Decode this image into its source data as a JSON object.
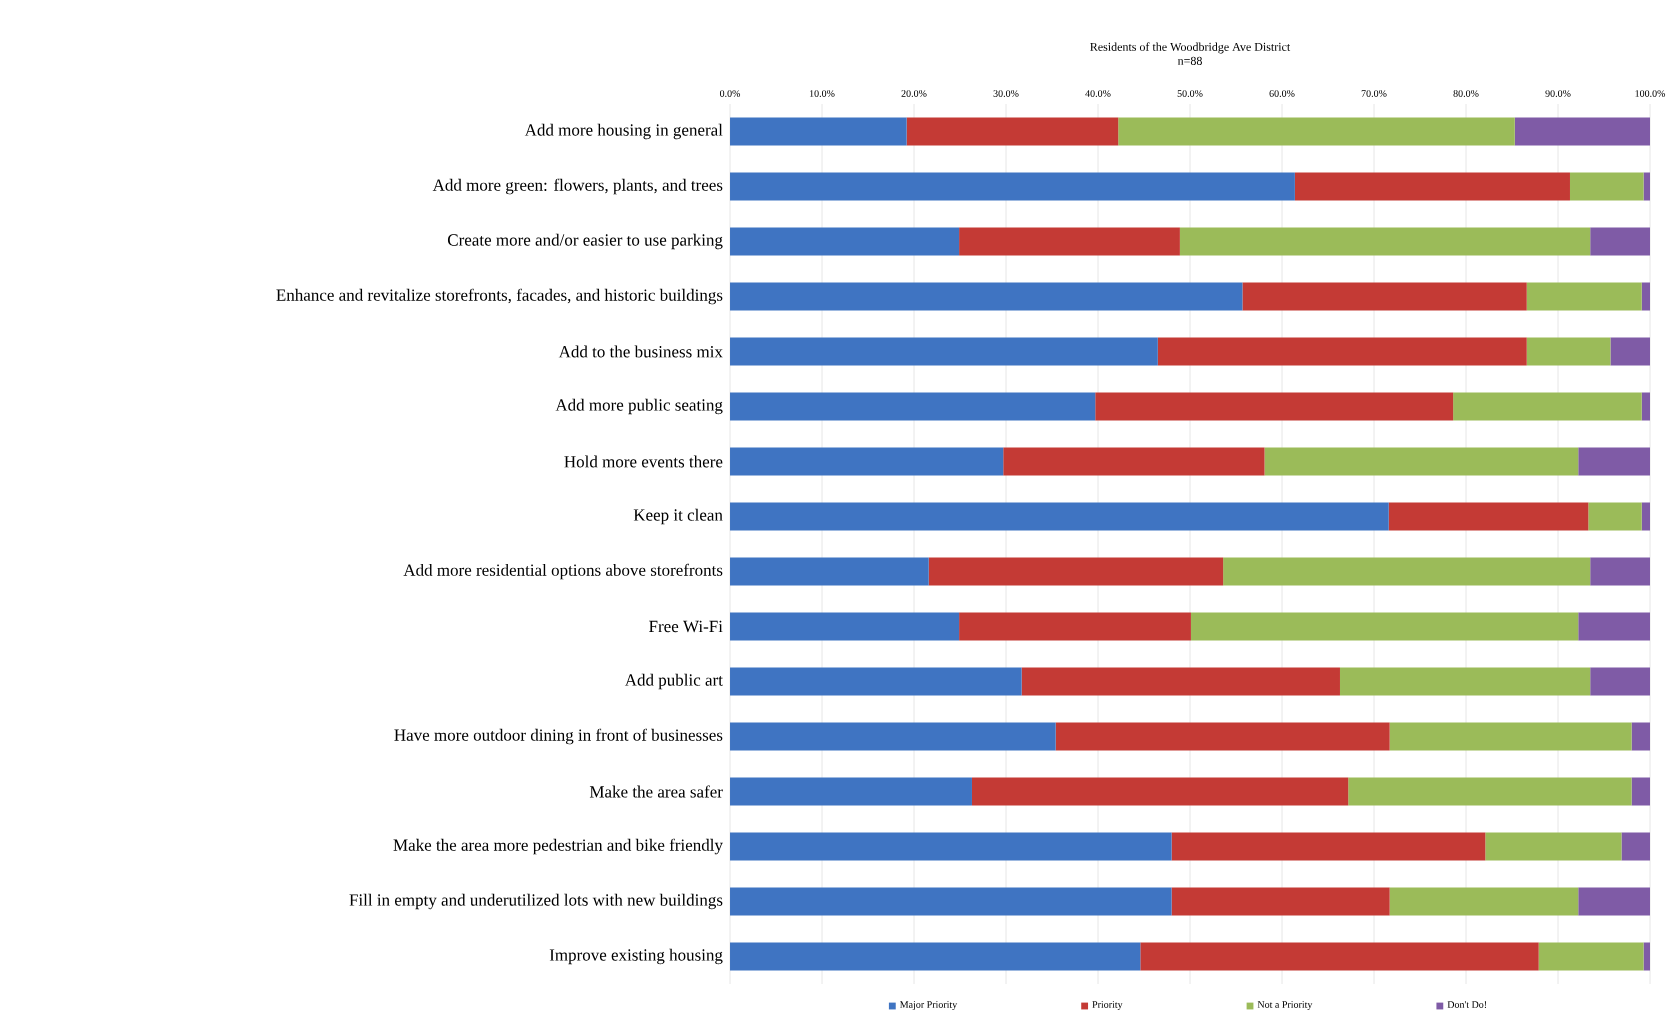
{
  "chart_data": {
    "type": "bar",
    "title": "Residents of the Woodbridge Ave District",
    "subtitle": "n=88",
    "orientation": "horizontal",
    "stacked": true,
    "grid": "x",
    "legend": "bottom",
    "categories": [
      "Add more housing in general",
      "Add more green: flowers, plants, and trees",
      "Create more and/or easier to use parking",
      "Enhance and revitalize storefronts, facades, and historic buildings",
      "Add to the business mix",
      "Add more public seating",
      "Hold more events there",
      "Keep it clean",
      "Add more residential options above storefronts",
      "Free Wi-Fi",
      "Add public art",
      "Have more outdoor dining in front of businesses",
      "Make the area safer",
      "Make the area more pedestrian and bike friendly",
      "Fill in empty and underutilized lots with new buildings",
      "Improve existing housing"
    ],
    "xlim": [
      0,
      100
    ],
    "xticks": [
      {
        "value": 0,
        "label": "0.0%"
      },
      {
        "value": 10,
        "label": "10.0%"
      },
      {
        "value": 20,
        "label": "20.0%"
      },
      {
        "value": 30,
        "label": "30.0%"
      },
      {
        "value": 40,
        "label": "40.0%"
      },
      {
        "value": 50,
        "label": "50.0%"
      },
      {
        "value": 60,
        "label": "60.0%"
      },
      {
        "value": 70,
        "label": "70.0%"
      },
      {
        "value": 80,
        "label": "80.0%"
      },
      {
        "value": 90,
        "label": "90.0%"
      },
      {
        "value": 100,
        "label": "100.0%"
      }
    ],
    "series": [
      {
        "name": "Major Priority",
        "color": "#3f74c2",
        "values": [
          19.2,
          61.4,
          24.9,
          55.7,
          46.5,
          39.7,
          29.7,
          71.6,
          21.6,
          24.9,
          31.7,
          35.4,
          26.3,
          48.0,
          48.0,
          44.6
        ]
      },
      {
        "name": "Priority",
        "color": "#c43a35",
        "values": [
          23.0,
          29.9,
          24.0,
          30.9,
          40.1,
          38.9,
          28.4,
          21.7,
          32.0,
          25.2,
          34.6,
          36.3,
          40.9,
          34.1,
          23.7,
          43.3
        ]
      },
      {
        "name": "Not a Priority",
        "color": "#9bbb59",
        "values": [
          43.1,
          8.0,
          44.6,
          12.5,
          9.1,
          20.5,
          34.1,
          5.8,
          39.9,
          42.1,
          27.2,
          26.3,
          30.8,
          14.8,
          20.5,
          11.4
        ]
      },
      {
        "name": "Don't Do!",
        "color": "#7f5ba6",
        "values": [
          14.7,
          0.7,
          6.5,
          0.9,
          4.3,
          0.9,
          7.8,
          0.9,
          6.5,
          7.8,
          6.5,
          2.0,
          2.0,
          3.1,
          7.8,
          0.7
        ]
      }
    ]
  }
}
